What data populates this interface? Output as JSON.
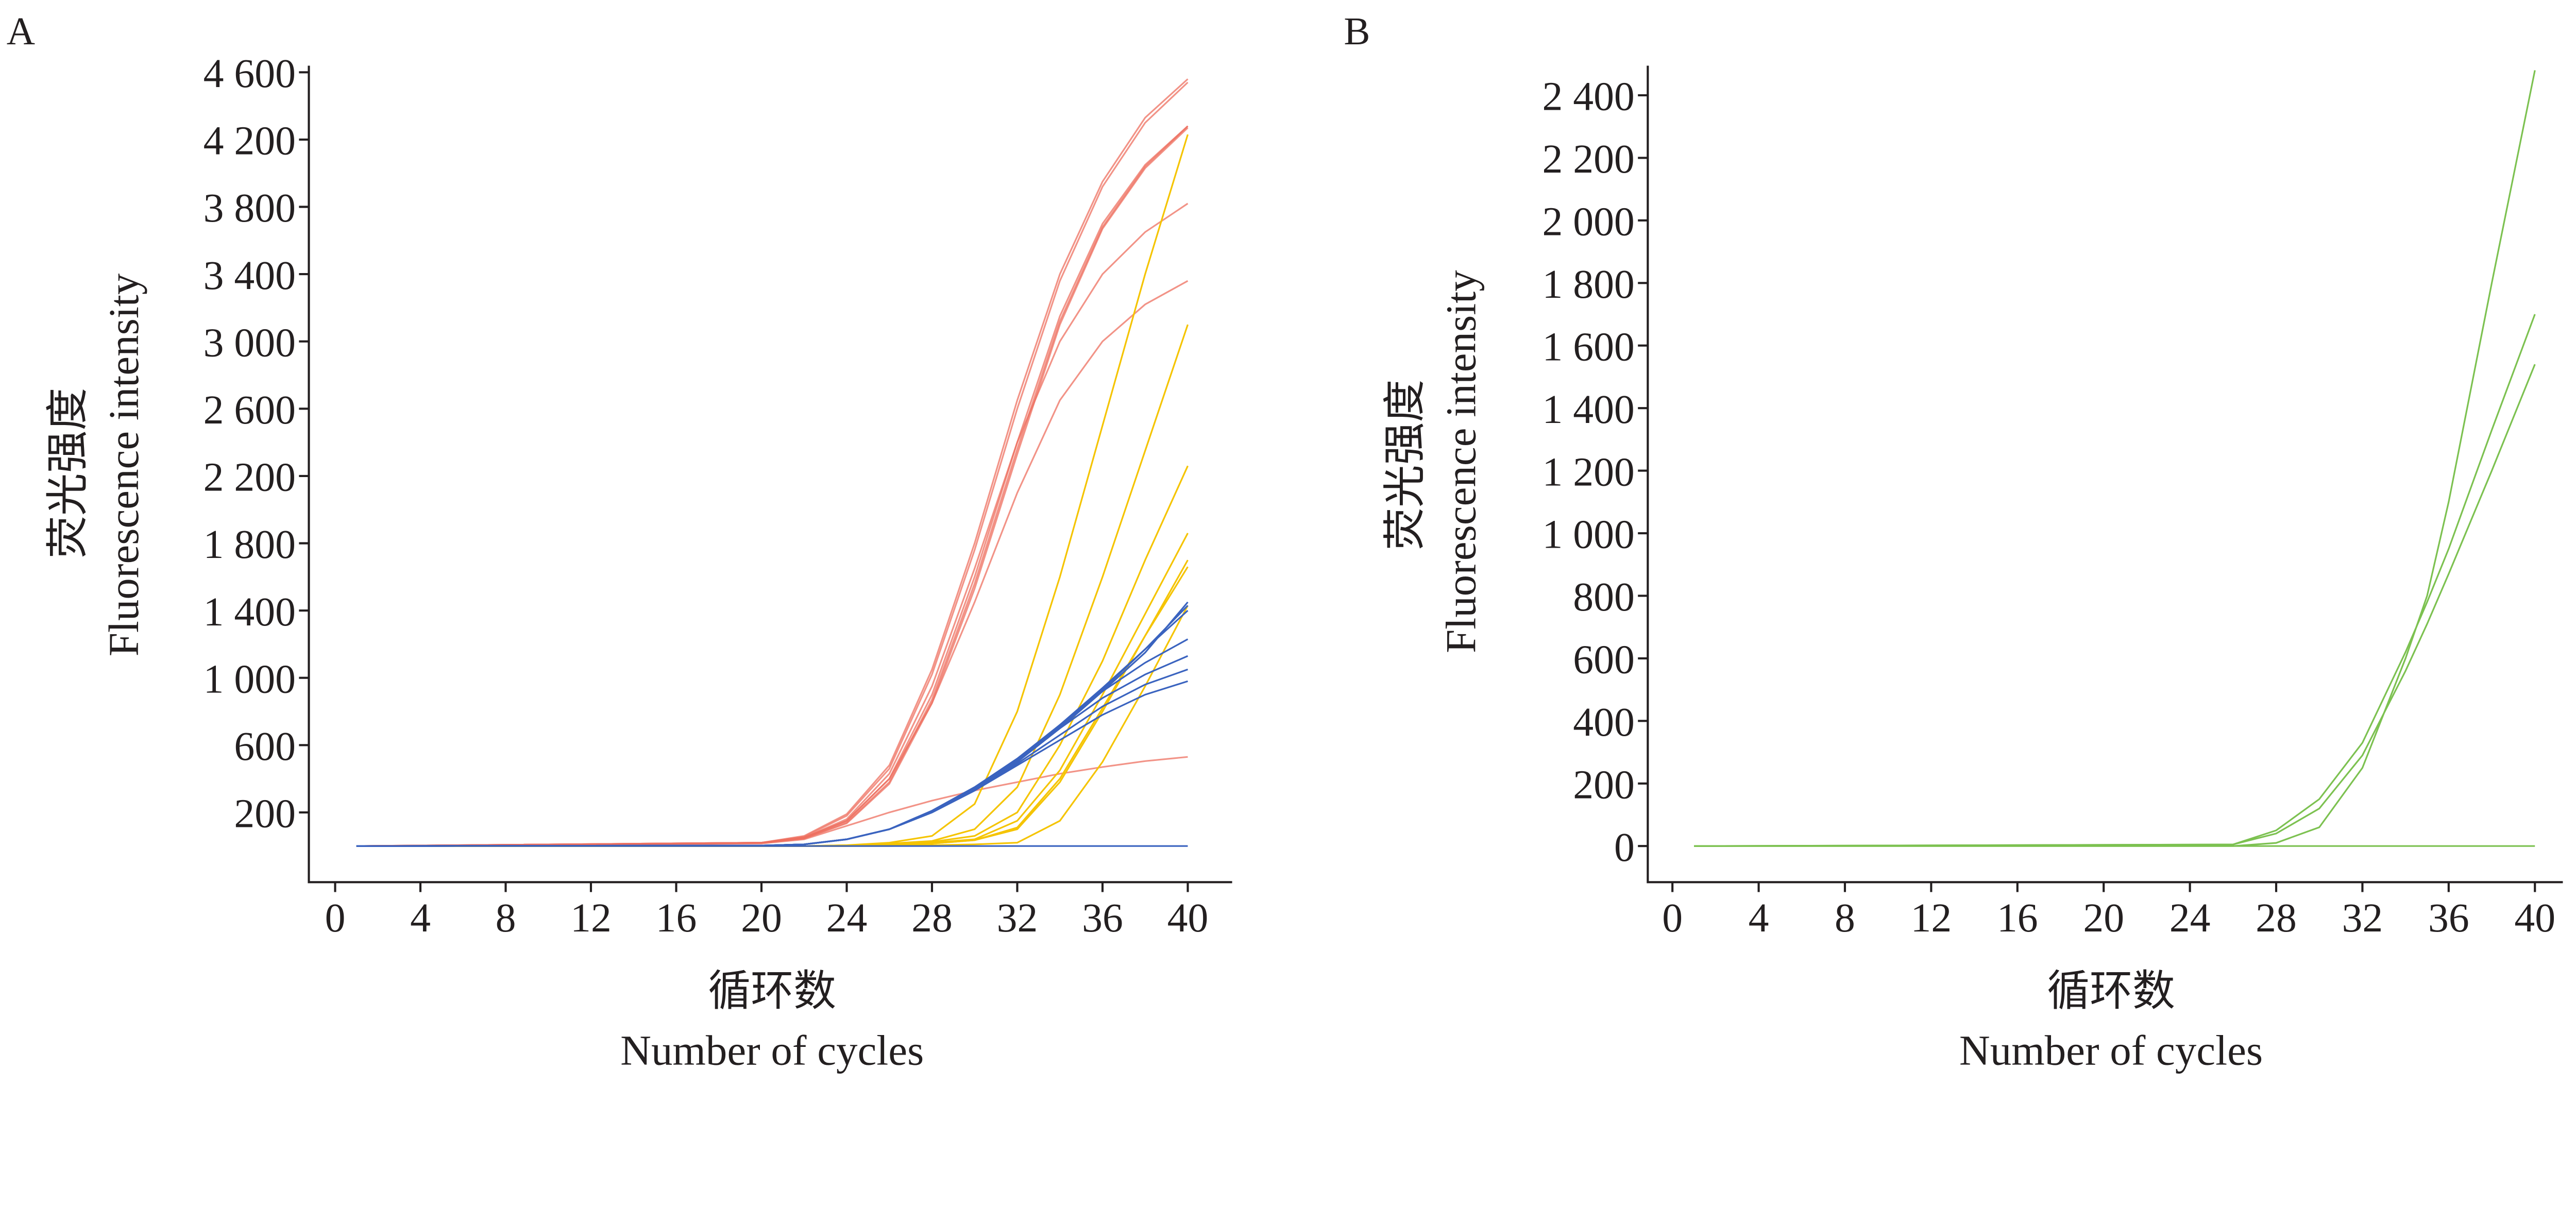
{
  "chart_data": [
    {
      "type": "line",
      "panel_label": "A",
      "ylabel_cn": "荧光强度",
      "ylabel": "Fluorescence intensity",
      "xlabel_cn": "循环数",
      "xlabel": "Number of cycles",
      "xlim": [
        0,
        40
      ],
      "ylim": [
        -200,
        4650
      ],
      "xticks": [
        0,
        4,
        8,
        12,
        16,
        20,
        24,
        28,
        32,
        36,
        40
      ],
      "yticks": [
        200,
        600,
        1000,
        1400,
        1800,
        2200,
        2600,
        3000,
        3400,
        3800,
        4200,
        4600
      ],
      "ytick_labels": [
        "200",
        "600",
        "1 000",
        "1 400",
        "1 800",
        "2 200",
        "2 600",
        "3 000",
        "3 400",
        "3 800",
        "4 200",
        "4 600"
      ],
      "grid": false,
      "x": [
        1,
        20,
        22,
        24,
        26,
        28,
        30,
        32,
        34,
        36,
        38,
        40
      ],
      "series": [
        {
          "color": "#ee6f5f",
          "values": [
            0,
            20,
            60,
            190,
            480,
            1050,
            1800,
            2650,
            3400,
            3950,
            4330,
            4560
          ]
        },
        {
          "color": "#ee6f5f",
          "values": [
            0,
            20,
            55,
            180,
            460,
            1020,
            1760,
            2600,
            3360,
            3920,
            4300,
            4540
          ]
        },
        {
          "color": "#ee6f5f",
          "values": [
            0,
            20,
            50,
            150,
            400,
            900,
            1600,
            2400,
            3150,
            3700,
            4050,
            4280
          ]
        },
        {
          "color": "#ee6f5f",
          "values": [
            0,
            18,
            45,
            140,
            380,
            870,
            1560,
            2360,
            3120,
            3680,
            4040,
            4280
          ]
        },
        {
          "color": "#ee6f5f",
          "values": [
            0,
            18,
            45,
            135,
            370,
            850,
            1530,
            2330,
            3100,
            3670,
            4030,
            4270
          ]
        },
        {
          "color": "#ee6f5f",
          "values": [
            0,
            20,
            50,
            160,
            430,
            950,
            1650,
            2400,
            3000,
            3400,
            3650,
            3820
          ]
        },
        {
          "color": "#ee6f5f",
          "values": [
            0,
            20,
            50,
            150,
            400,
            850,
            1450,
            2100,
            2650,
            3000,
            3220,
            3360
          ]
        },
        {
          "color": "#ee6f5f",
          "values": [
            0,
            15,
            40,
            120,
            200,
            270,
            330,
            380,
            430,
            470,
            505,
            530
          ]
        },
        {
          "color": "#f5c400",
          "values": [
            0,
            0,
            0,
            5,
            20,
            60,
            250,
            800,
            1600,
            2500,
            3400,
            4230
          ]
        },
        {
          "color": "#f5c400",
          "values": [
            0,
            0,
            0,
            5,
            15,
            30,
            100,
            350,
            900,
            1600,
            2350,
            3100
          ]
        },
        {
          "color": "#f5c400",
          "values": [
            0,
            0,
            0,
            0,
            10,
            25,
            60,
            200,
            600,
            1100,
            1700,
            2260
          ]
        },
        {
          "color": "#f5c400",
          "values": [
            0,
            0,
            0,
            0,
            10,
            20,
            40,
            150,
            450,
            900,
            1380,
            1860
          ]
        },
        {
          "color": "#f5c400",
          "values": [
            0,
            0,
            0,
            0,
            5,
            15,
            35,
            100,
            380,
            800,
            1250,
            1700
          ]
        },
        {
          "color": "#f5c400",
          "values": [
            0,
            0,
            0,
            0,
            5,
            15,
            35,
            110,
            400,
            820,
            1250,
            1660
          ]
        },
        {
          "color": "#f5c400",
          "values": [
            0,
            0,
            0,
            0,
            0,
            5,
            10,
            20,
            150,
            500,
            950,
            1430
          ]
        },
        {
          "color": "#3a63bf",
          "values": [
            0,
            3,
            10,
            40,
            100,
            200,
            330,
            500,
            700,
            920,
            1150,
            1450
          ]
        },
        {
          "color": "#3a63bf",
          "values": [
            0,
            3,
            10,
            40,
            100,
            200,
            330,
            500,
            710,
            930,
            1170,
            1430
          ]
        },
        {
          "color": "#3a63bf",
          "values": [
            0,
            3,
            10,
            40,
            100,
            200,
            340,
            510,
            720,
            940,
            1170,
            1400
          ]
        },
        {
          "color": "#3a63bf",
          "values": [
            0,
            3,
            10,
            40,
            100,
            210,
            350,
            520,
            720,
            920,
            1090,
            1230
          ]
        },
        {
          "color": "#3a63bf",
          "values": [
            0,
            3,
            10,
            40,
            100,
            210,
            350,
            510,
            700,
            880,
            1020,
            1130
          ]
        },
        {
          "color": "#3a63bf",
          "values": [
            0,
            3,
            10,
            40,
            100,
            205,
            340,
            490,
            660,
            830,
            960,
            1050
          ]
        },
        {
          "color": "#3a63bf",
          "values": [
            0,
            3,
            10,
            40,
            100,
            200,
            330,
            480,
            630,
            780,
            900,
            980
          ]
        },
        {
          "color": "#3a63bf",
          "values": [
            0,
            0,
            0,
            0,
            0,
            0,
            0,
            0,
            0,
            0,
            0,
            0
          ]
        }
      ]
    },
    {
      "type": "line",
      "panel_label": "B",
      "ylabel_cn": "荧光强度",
      "ylabel": "Fluorescence intensity",
      "xlabel_cn": "循环数",
      "xlabel": "Number of cycles",
      "xlim": [
        0,
        40
      ],
      "ylim": [
        -200,
        2550
      ],
      "xticks": [
        0,
        4,
        8,
        12,
        16,
        20,
        24,
        28,
        32,
        36,
        40
      ],
      "yticks": [
        0,
        200,
        400,
        600,
        800,
        1000,
        1200,
        1400,
        1600,
        1800,
        2000,
        2200,
        2400
      ],
      "ytick_labels": [
        "0",
        "200",
        "400",
        "600",
        "800",
        "1 000",
        "1 200",
        "1 400",
        "1 600",
        "1 800",
        "2 000",
        "2 200",
        "2 400"
      ],
      "grid": false,
      "x": [
        1,
        26,
        28,
        30,
        32,
        34,
        35,
        36,
        38,
        40
      ],
      "series": [
        {
          "color": "#7cc150",
          "values": [
            0,
            0,
            10,
            60,
            250,
            600,
            800,
            1100,
            1800,
            2480
          ]
        },
        {
          "color": "#7cc150",
          "values": [
            0,
            5,
            50,
            150,
            330,
            620,
            780,
            950,
            1330,
            1700
          ]
        },
        {
          "color": "#7cc150",
          "values": [
            0,
            5,
            40,
            120,
            290,
            560,
            710,
            870,
            1200,
            1540
          ]
        },
        {
          "color": "#7cc150",
          "values": [
            0,
            0,
            0,
            0,
            0,
            0,
            0,
            0,
            0,
            0
          ]
        }
      ]
    }
  ]
}
